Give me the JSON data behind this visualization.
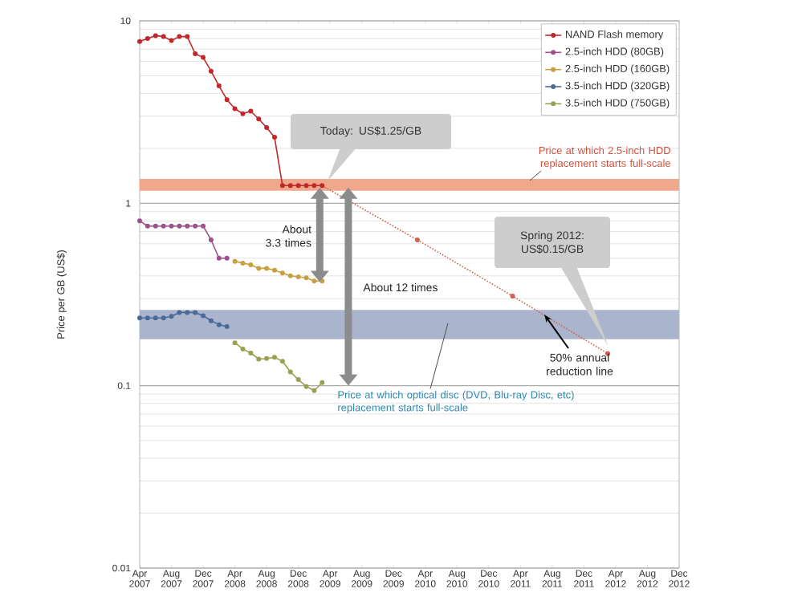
{
  "chart_data": {
    "type": "line",
    "ylabel": "Price per GB (US$)",
    "log": "y",
    "grid": "y",
    "legend": "top right",
    "marker": "circle",
    "xlim": [
      "2007-04",
      "2012-12"
    ],
    "ylim": [
      0.01,
      10
    ],
    "yticks": [
      0.01,
      0.1,
      1,
      10
    ],
    "xticks": [
      {
        "value": "2007-04",
        "label": "Apr 2007"
      },
      {
        "value": "2007-08",
        "label": "Aug 2007"
      },
      {
        "value": "2007-12",
        "label": "Dec 2007"
      },
      {
        "value": "2008-04",
        "label": "Apr 2008"
      },
      {
        "value": "2008-08",
        "label": "Aug 2008"
      },
      {
        "value": "2008-12",
        "label": "Dec 2008"
      },
      {
        "value": "2009-04",
        "label": "Apr 2009"
      },
      {
        "value": "2009-08",
        "label": "Aug 2009"
      },
      {
        "value": "2009-12",
        "label": "Dec 2009"
      },
      {
        "value": "2010-04",
        "label": "Apr 2010"
      },
      {
        "value": "2010-08",
        "label": "Aug 2010"
      },
      {
        "value": "2010-12",
        "label": "Dec 2010"
      },
      {
        "value": "2011-04",
        "label": "Apr 2011"
      },
      {
        "value": "2011-08",
        "label": "Aug 2011"
      },
      {
        "value": "2011-12",
        "label": "Dec 2011"
      },
      {
        "value": "2012-04",
        "label": "Apr 2012"
      },
      {
        "value": "2012-08",
        "label": "Aug 2012"
      },
      {
        "value": "2012-12",
        "label": "Dec 2012"
      }
    ],
    "bands": [
      {
        "axis": "y",
        "from": 1.17,
        "to": 1.36,
        "label": "Price at which 2.5-inch HDD replacement starts full-scale",
        "color": "#f0a88c"
      },
      {
        "axis": "y",
        "from": 0.18,
        "to": 0.26,
        "label": "Price at which optical disc (DVD, Blu-ray Disc, etc) replacement starts full-scale",
        "color": "#aab4cc"
      }
    ],
    "series": [
      {
        "name": "NAND Flash memory",
        "color": "#c0282c",
        "x": [
          "2007-04",
          "2007-05",
          "2007-06",
          "2007-07",
          "2007-08",
          "2007-09",
          "2007-10",
          "2007-11",
          "2007-12",
          "2008-01",
          "2008-02",
          "2008-03",
          "2008-04",
          "2008-05",
          "2008-06",
          "2008-07",
          "2008-08",
          "2008-09",
          "2008-10",
          "2008-11",
          "2008-12",
          "2009-01",
          "2009-02",
          "2009-03"
        ],
        "values": [
          7.7,
          8.0,
          8.3,
          8.2,
          7.8,
          8.2,
          8.2,
          6.6,
          6.3,
          5.3,
          4.4,
          3.7,
          3.3,
          3.1,
          3.2,
          2.9,
          2.6,
          2.3,
          1.25,
          1.25,
          1.25,
          1.25,
          1.25,
          1.25
        ]
      },
      {
        "name": "2.5-inch HDD (80GB)",
        "color": "#a0508c",
        "x": [
          "2007-04",
          "2007-05",
          "2007-06",
          "2007-07",
          "2007-08",
          "2007-09",
          "2007-10",
          "2007-11",
          "2007-12",
          "2008-01",
          "2008-02",
          "2008-03"
        ],
        "values": [
          0.8,
          0.75,
          0.75,
          0.75,
          0.75,
          0.75,
          0.75,
          0.75,
          0.75,
          0.63,
          0.5,
          0.5
        ]
      },
      {
        "name": "2.5-inch HDD (160GB)",
        "color": "#c8a040",
        "x": [
          "2008-04",
          "2008-05",
          "2008-06",
          "2008-07",
          "2008-08",
          "2008-09",
          "2008-10",
          "2008-11",
          "2008-12",
          "2009-01",
          "2009-02",
          "2009-03"
        ],
        "values": [
          0.48,
          0.47,
          0.46,
          0.44,
          0.44,
          0.43,
          0.415,
          0.4,
          0.395,
          0.39,
          0.375,
          0.375
        ]
      },
      {
        "name": "3.5-inch HDD (320GB)",
        "color": "#4a6a98",
        "x": [
          "2007-04",
          "2007-05",
          "2007-06",
          "2007-07",
          "2007-08",
          "2007-09",
          "2007-10",
          "2007-11",
          "2007-12",
          "2008-01",
          "2008-02",
          "2008-03"
        ],
        "values": [
          0.235,
          0.235,
          0.235,
          0.235,
          0.24,
          0.252,
          0.252,
          0.252,
          0.242,
          0.227,
          0.216,
          0.211
        ]
      },
      {
        "name": "3.5-inch HDD (750GB)",
        "color": "#9aa050",
        "x": [
          "2008-04",
          "2008-05",
          "2008-06",
          "2008-07",
          "2008-08",
          "2008-09",
          "2008-10",
          "2008-11",
          "2008-12",
          "2009-01",
          "2009-02",
          "2009-03"
        ],
        "values": [
          0.172,
          0.159,
          0.151,
          0.14,
          0.141,
          0.143,
          0.136,
          0.119,
          0.108,
          0.099,
          0.094,
          0.104
        ]
      },
      {
        "color": "#d06050",
        "line_style": "dotted",
        "x": [
          "2009-03",
          "2010-03",
          "2011-03",
          "2012-03"
        ],
        "values": [
          1.25,
          0.63,
          0.31,
          0.15
        ]
      }
    ],
    "annotations": [
      "Today: US$1.25/GB",
      "Spring 2012: US$0.15/GB",
      "About 3.3 times",
      "About 12 times",
      "50% annual reduction line"
    ]
  }
}
